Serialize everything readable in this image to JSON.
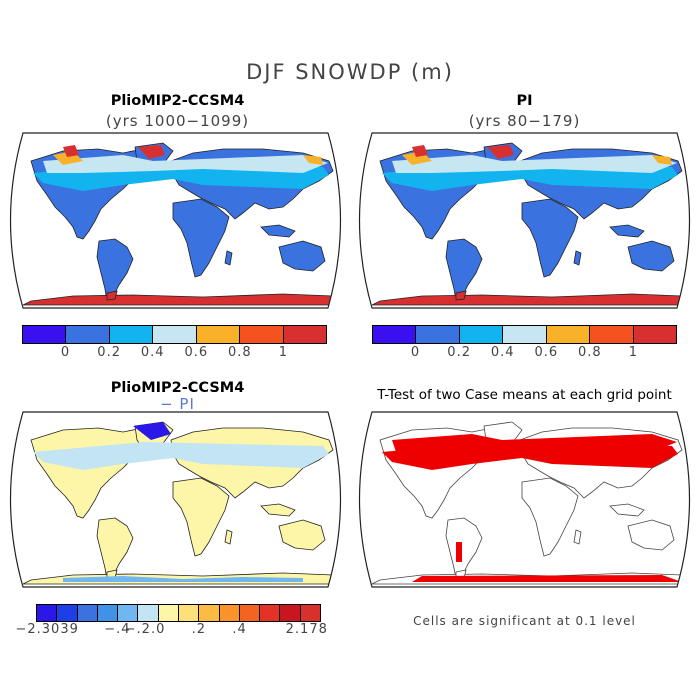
{
  "title": "DJF SNOWDP (m)",
  "panels": {
    "top_left": {
      "title": "PlioMIP2-CCSM4",
      "subtitle": "(yrs 1000−1099)"
    },
    "top_right": {
      "title": "PI",
      "subtitle": "(yrs 80−179)"
    },
    "bottom_left": {
      "title": "PlioMIP2-CCSM4",
      "subtitle": "− PI"
    },
    "bottom_right": {
      "title": "T-Test of two Case means at each grid point",
      "note": "Cells are significant at 0.1 level"
    }
  },
  "colorbar_abs": {
    "colors": [
      "#3b10f0",
      "#3a73e0",
      "#12b4ef",
      "#c6e6f2",
      "#f9b12a",
      "#f5521f",
      "#d83030"
    ],
    "tick_labels": [
      "0",
      "0.2",
      "0.4",
      "0.6",
      "0.8",
      "1"
    ]
  },
  "colorbar_diff": {
    "colors": [
      "#2b18e8",
      "#1e3ee6",
      "#3c72e0",
      "#3f92e6",
      "#70b6f0",
      "#c3e4f2",
      "#fdf6a8",
      "#fde07a",
      "#fcbb42",
      "#f9932a",
      "#f26422",
      "#e43226",
      "#c8151f",
      "#d8302c"
    ],
    "tick_labels": [
      "−2.3039",
      "−.4",
      "−.2",
      ".0",
      ".2",
      ".4",
      "2.178"
    ]
  },
  "map_colors": {
    "ocean": "#ffffff",
    "land_base": "#3a73e0",
    "snow_mid": "#12b4ef",
    "snow_light": "#c6e6f2",
    "snow_orange": "#f9b12a",
    "snow_red": "#d83030",
    "diff_land": "#fdf6a8",
    "diff_light": "#c3e4f2",
    "sig": "#ee0000"
  }
}
